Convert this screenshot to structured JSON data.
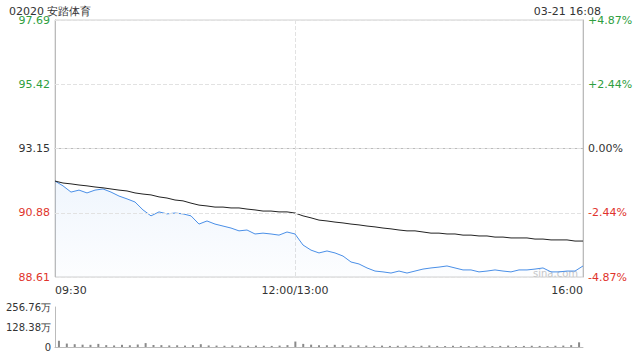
{
  "chart_data": [
    {
      "type": "line",
      "title": "02020 安踏体育",
      "subtitle": "03-21 16:08",
      "annotation": "sina.com",
      "categories": [
        "09:30",
        null,
        null,
        null,
        null,
        null,
        null,
        null,
        null,
        null,
        null,
        null,
        null,
        null,
        null,
        null,
        null,
        null,
        null,
        null,
        null,
        null,
        null,
        null,
        null,
        null,
        null,
        null,
        null,
        null,
        "12:00/13:00",
        null,
        null,
        null,
        null,
        null,
        null,
        null,
        null,
        null,
        null,
        null,
        null,
        null,
        null,
        null,
        null,
        null,
        null,
        null,
        null,
        null,
        null,
        null,
        null,
        null,
        null,
        null,
        null,
        null,
        null,
        null,
        null,
        null,
        null,
        null,
        "16:00"
      ],
      "series": [
        {
          "color": "#4a8fe7",
          "values": [
            92.0,
            91.83,
            91.61,
            91.68,
            91.58,
            91.68,
            91.72,
            91.61,
            91.47,
            91.37,
            91.26,
            90.98,
            90.77,
            90.91,
            90.84,
            90.87,
            90.84,
            90.77,
            90.48,
            90.59,
            90.48,
            90.41,
            90.34,
            90.24,
            90.27,
            90.13,
            90.16,
            90.13,
            90.09,
            90.2,
            90.13,
            89.74,
            89.56,
            89.46,
            89.53,
            89.46,
            89.35,
            89.14,
            89.07,
            88.93,
            88.82,
            88.79,
            88.75,
            88.82,
            88.75,
            88.82,
            88.89,
            88.93,
            88.96,
            89.0,
            88.93,
            88.86,
            88.86,
            88.79,
            88.82,
            88.86,
            88.82,
            88.79,
            88.86,
            88.86,
            88.89,
            88.93,
            88.79,
            88.79,
            88.82,
            88.82,
            89.0
          ]
        },
        {
          "color": "#222222",
          "values": [
            92.0,
            91.93,
            91.9,
            91.86,
            91.83,
            91.79,
            91.76,
            91.72,
            91.68,
            91.65,
            91.58,
            91.54,
            91.51,
            91.44,
            91.4,
            91.33,
            91.3,
            91.22,
            91.15,
            91.12,
            91.08,
            91.08,
            91.05,
            91.05,
            91.01,
            90.98,
            90.94,
            90.94,
            90.91,
            90.91,
            90.87,
            90.77,
            90.7,
            90.62,
            90.59,
            90.55,
            90.52,
            90.48,
            90.45,
            90.41,
            90.38,
            90.34,
            90.31,
            90.27,
            90.24,
            90.24,
            90.2,
            90.16,
            90.16,
            90.13,
            90.13,
            90.09,
            90.09,
            90.06,
            90.06,
            90.02,
            90.02,
            89.99,
            89.99,
            89.99,
            89.95,
            89.95,
            89.92,
            89.92,
            89.92,
            89.88,
            89.88
          ]
        }
      ],
      "ylim": [
        88.61,
        97.69
      ],
      "yticks": [
        88.61,
        90.88,
        93.15,
        95.42,
        97.69
      ],
      "y2lim": [
        -4.87,
        4.87
      ],
      "y2ticks": [
        {
          "value": -4.87,
          "label": "-4.87%"
        },
        {
          "value": -2.44,
          "label": "-2.44%"
        },
        {
          "value": 0,
          "label": "0.00%"
        },
        {
          "value": 2.44,
          "label": "+2.44%"
        },
        {
          "value": 4.87,
          "label": "+4.87%"
        }
      ],
      "grid": true
    },
    {
      "type": "bar",
      "values": [
        40,
        22,
        18,
        15,
        14,
        20,
        12,
        10,
        14,
        11,
        16,
        25,
        13,
        12,
        10,
        11,
        9,
        12,
        18,
        10,
        9,
        8,
        10,
        9,
        8,
        9,
        8,
        7,
        9,
        12,
        35,
        20,
        15,
        12,
        11,
        14,
        12,
        10,
        11,
        9,
        8,
        9,
        7,
        8,
        9,
        7,
        8,
        10,
        7,
        6,
        8,
        7,
        6,
        7,
        8,
        6,
        7,
        9,
        6,
        7,
        8,
        7,
        6,
        8,
        9,
        12,
        30
      ],
      "color": "#8a8a8a",
      "ylim": [
        0,
        256.76
      ],
      "yticks": [
        0,
        {
          "value": 128.38,
          "label": "128.38万"
        },
        {
          "value": 256.76,
          "label": "256.76万"
        }
      ],
      "tick_labels": "y"
    }
  ]
}
